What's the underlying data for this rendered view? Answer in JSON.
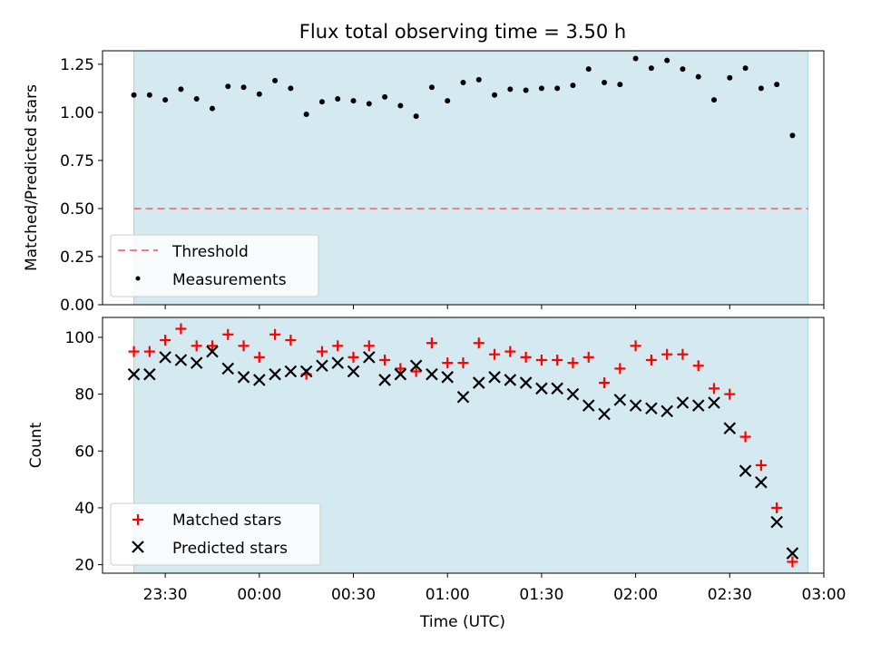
{
  "chart_data": [
    {
      "type": "scatter",
      "title": "Flux total observing time = 3.50 h",
      "xlabel": "",
      "ylabel": "Matched/Predicted stars",
      "xlim": [
        "23:10",
        "03:00"
      ],
      "ylim": [
        0,
        1.32
      ],
      "xticks": [
        "23:30",
        "00:00",
        "00:30",
        "01:00",
        "01:30",
        "02:00",
        "02:30",
        "03:00"
      ],
      "yticks": [
        0,
        0.25,
        0.5,
        0.75,
        1.0,
        1.25
      ],
      "ytick_labels": [
        "0.00",
        "0.25",
        "0.50",
        "0.75",
        "1.00",
        "1.25"
      ],
      "shaded_span": [
        "23:20",
        "02:55"
      ],
      "threshold": 0.5,
      "legend": {
        "placement": "lower-left",
        "entries": [
          "Threshold",
          "Measurements"
        ]
      },
      "series": [
        {
          "name": "Measurements",
          "x": [
            "23:20",
            "23:25",
            "23:30",
            "23:35",
            "23:40",
            "23:45",
            "23:50",
            "23:55",
            "00:00",
            "00:05",
            "00:10",
            "00:15",
            "00:20",
            "00:25",
            "00:30",
            "00:35",
            "00:40",
            "00:45",
            "00:50",
            "00:55",
            "01:00",
            "01:05",
            "01:10",
            "01:15",
            "01:20",
            "01:25",
            "01:30",
            "01:35",
            "01:40",
            "01:45",
            "01:50",
            "01:55",
            "02:00",
            "02:05",
            "02:10",
            "02:15",
            "02:20",
            "02:25",
            "02:30",
            "02:35",
            "02:40",
            "02:45",
            "02:50"
          ],
          "values": [
            1.09,
            1.09,
            1.065,
            1.12,
            1.07,
            1.02,
            1.135,
            1.13,
            1.095,
            1.165,
            1.125,
            0.99,
            1.055,
            1.07,
            1.06,
            1.045,
            1.08,
            1.035,
            0.98,
            1.13,
            1.06,
            1.155,
            1.17,
            1.09,
            1.12,
            1.115,
            1.125,
            1.125,
            1.14,
            1.225,
            1.155,
            1.145,
            1.28,
            1.23,
            1.27,
            1.225,
            1.185,
            1.065,
            1.18,
            1.23,
            1.125,
            1.145,
            0.88
          ]
        }
      ]
    },
    {
      "type": "scatter",
      "xlabel": "Time (UTC)",
      "ylabel": "Count",
      "xlim": [
        "23:10",
        "03:00"
      ],
      "ylim": [
        17,
        107
      ],
      "xticks": [
        "23:30",
        "00:00",
        "00:30",
        "01:00",
        "01:30",
        "02:00",
        "02:30",
        "03:00"
      ],
      "yticks": [
        20,
        40,
        60,
        80,
        100
      ],
      "shaded_span": [
        "23:20",
        "02:55"
      ],
      "legend": {
        "placement": "lower-left",
        "entries": [
          "Matched stars",
          "Predicted stars"
        ]
      },
      "x": [
        "23:20",
        "23:25",
        "23:30",
        "23:35",
        "23:40",
        "23:45",
        "23:50",
        "23:55",
        "00:00",
        "00:05",
        "00:10",
        "00:15",
        "00:20",
        "00:25",
        "00:30",
        "00:35",
        "00:40",
        "00:45",
        "00:50",
        "00:55",
        "01:00",
        "01:05",
        "01:10",
        "01:15",
        "01:20",
        "01:25",
        "01:30",
        "01:35",
        "01:40",
        "01:45",
        "01:50",
        "01:55",
        "02:00",
        "02:05",
        "02:10",
        "02:15",
        "02:20",
        "02:25",
        "02:30",
        "02:35",
        "02:40",
        "02:45",
        "02:50"
      ],
      "series": [
        {
          "name": "Matched stars",
          "values": [
            95,
            95,
            99,
            103,
            97,
            97,
            101,
            97,
            93,
            101,
            99,
            87,
            95,
            97,
            93,
            97,
            92,
            89,
            88,
            98,
            91,
            91,
            98,
            94,
            95,
            93,
            92,
            92,
            91,
            93,
            84,
            89,
            97,
            92,
            94,
            94,
            90,
            82,
            80,
            65,
            55,
            40,
            21
          ]
        },
        {
          "name": "Predicted stars",
          "values": [
            87,
            87,
            93,
            92,
            91,
            95,
            89,
            86,
            85,
            87,
            88,
            88,
            90,
            91,
            88,
            93,
            85,
            87,
            90,
            87,
            86,
            79,
            84,
            86,
            85,
            84,
            82,
            82,
            80,
            76,
            73,
            78,
            76,
            75,
            74,
            77,
            76,
            77,
            68,
            53,
            49,
            35,
            24
          ]
        }
      ]
    }
  ],
  "colors": {
    "shade": "#d4eaf0",
    "threshold": "#f08080",
    "measurement": "#000000",
    "matched": "#ff0000",
    "predicted": "#000000"
  }
}
